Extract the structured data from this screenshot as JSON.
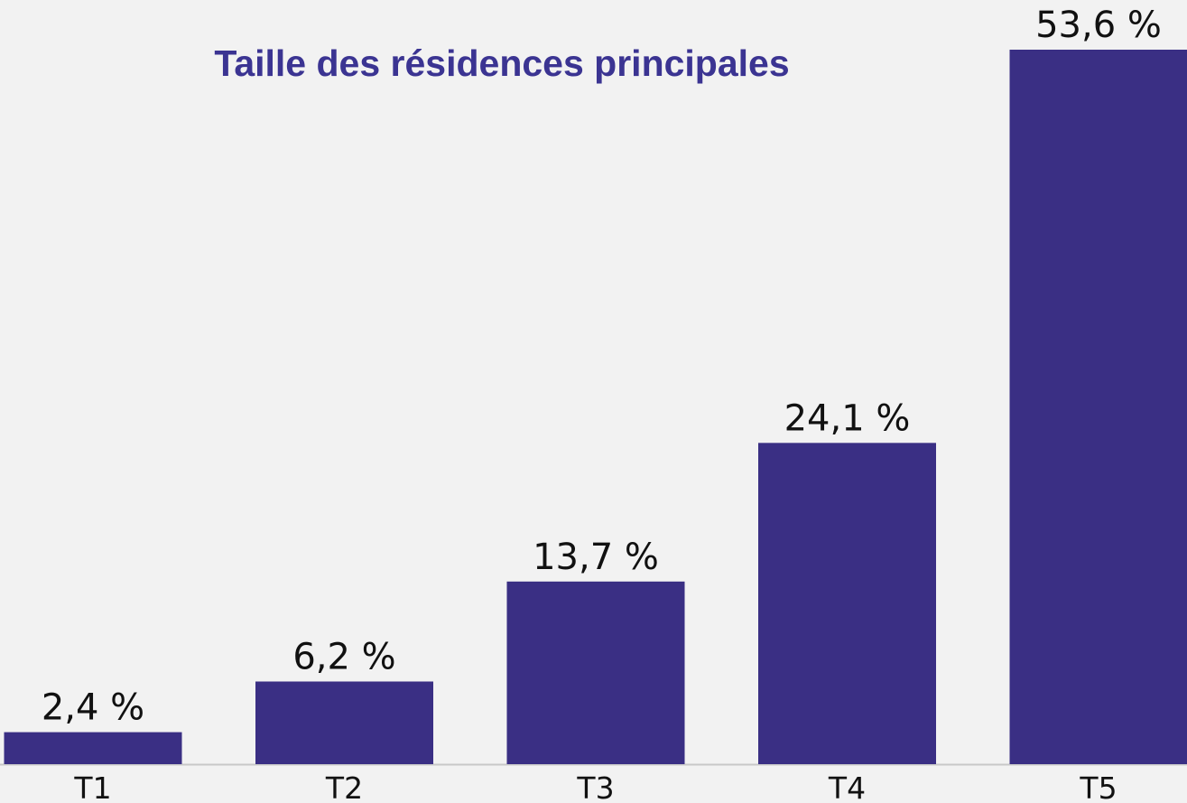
{
  "chart_data": {
    "type": "bar",
    "title": "Taille des résidences principales",
    "categories": [
      "T1",
      "T2",
      "T3",
      "T4",
      "T5"
    ],
    "values": [
      2.4,
      6.2,
      13.7,
      24.1,
      53.6
    ],
    "value_labels": [
      "2,4 %",
      "6,2 %",
      "13,7 %",
      "24,1 %",
      "53,6 %"
    ],
    "color": "#3a2f84"
  }
}
